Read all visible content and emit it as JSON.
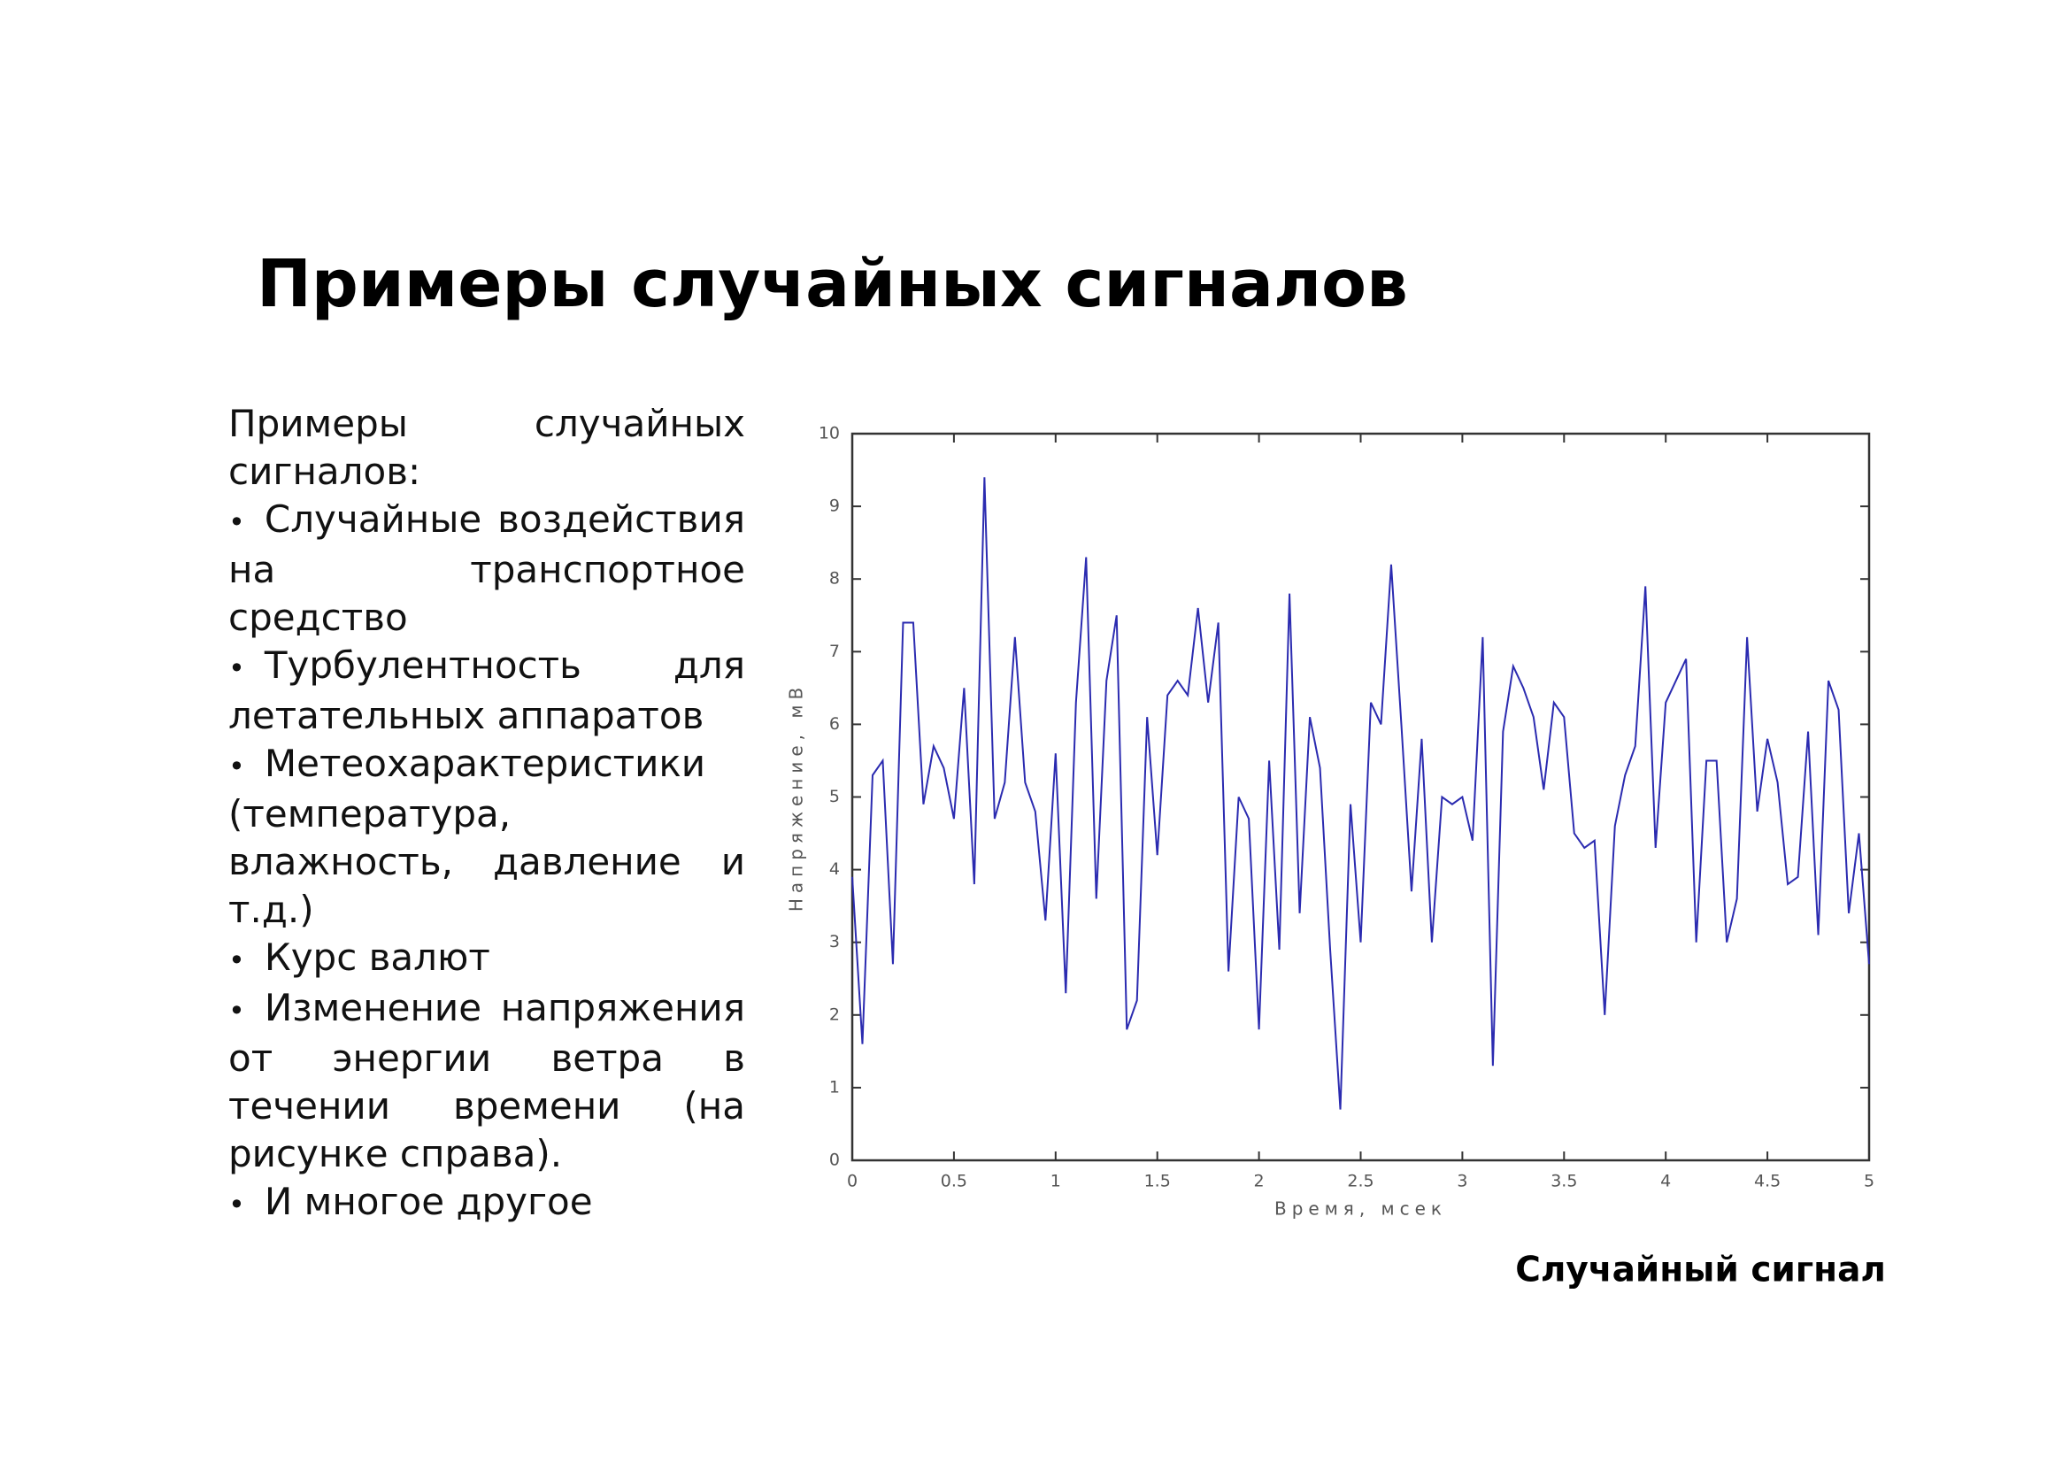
{
  "title": "Примеры случайных сигналов",
  "text": {
    "intro": "Примеры случайных сигналов:",
    "items": [
      "Случайные воздействия на транспортное средство",
      "Турбулентность для летательных аппаратов",
      "Метеохарактеристики (температура, влажность, давление и т.д.)",
      "Курс валют",
      "Изменение напряжения от энергии ветра в течении времени (на рисунке справа).",
      "И многое другое"
    ]
  },
  "caption": "Случайный сигнал",
  "chart_data": {
    "type": "line",
    "x_label": "Время, мсек",
    "y_label": "Напряжение, мВ",
    "x": [
      0,
      0.05,
      0.1,
      0.15,
      0.2,
      0.25,
      0.3,
      0.35,
      0.4,
      0.45,
      0.5,
      0.55,
      0.6,
      0.65,
      0.7,
      0.75,
      0.8,
      0.85,
      0.9,
      0.95,
      1,
      1.05,
      1.1,
      1.15,
      1.2,
      1.25,
      1.3,
      1.35,
      1.4,
      1.45,
      1.5,
      1.55,
      1.6,
      1.65,
      1.7,
      1.75,
      1.8,
      1.85,
      1.9,
      1.95,
      2,
      2.05,
      2.1,
      2.15,
      2.2,
      2.25,
      2.3,
      2.35,
      2.4,
      2.45,
      2.5,
      2.55,
      2.6,
      2.65,
      2.7,
      2.75,
      2.8,
      2.85,
      2.9,
      2.95,
      3,
      3.05,
      3.1,
      3.15,
      3.2,
      3.25,
      3.3,
      3.35,
      3.4,
      3.45,
      3.5,
      3.55,
      3.6,
      3.65,
      3.7,
      3.75,
      3.8,
      3.85,
      3.9,
      3.95,
      4,
      4.05,
      4.1,
      4.15,
      4.2,
      4.25,
      4.3,
      4.35,
      4.4,
      4.45,
      4.5,
      4.55,
      4.6,
      4.65,
      4.7,
      4.75,
      4.8,
      4.85,
      4.9,
      4.95,
      5
    ],
    "series": [
      {
        "color": "#2b2bb0",
        "values": [
          3.9,
          1.6,
          5.3,
          5.5,
          2.7,
          7.4,
          7.4,
          4.9,
          5.7,
          5.4,
          4.7,
          6.5,
          3.8,
          9.4,
          4.7,
          5.2,
          7.2,
          5.2,
          4.8,
          3.3,
          5.6,
          2.3,
          6.3,
          8.3,
          3.6,
          6.6,
          7.5,
          1.8,
          2.2,
          6.1,
          4.2,
          6.4,
          6.6,
          6.4,
          7.6,
          6.3,
          7.4,
          2.6,
          5.0,
          4.7,
          1.8,
          5.5,
          2.9,
          7.8,
          3.4,
          6.1,
          5.4,
          2.9,
          0.7,
          4.9,
          3.0,
          6.3,
          6.0,
          8.2,
          6.0,
          3.7,
          5.8,
          3.0,
          5.0,
          4.9,
          5.0,
          4.4,
          7.2,
          1.3,
          5.9,
          6.8,
          6.5,
          6.1,
          5.1,
          6.3,
          6.1,
          4.5,
          4.3,
          4.4,
          2.0,
          4.6,
          5.3,
          5.7,
          7.9,
          4.3,
          6.3,
          6.6,
          6.9,
          3.0,
          5.5,
          5.5,
          3.0,
          3.6,
          7.2,
          4.8,
          5.8,
          5.2,
          3.8,
          3.9,
          5.9,
          3.1,
          6.6,
          6.2,
          3.4,
          4.5,
          2.7
        ]
      }
    ],
    "xlim": [
      0,
      5
    ],
    "ylim": [
      0,
      10
    ],
    "xticks": [
      0,
      0.5,
      1,
      1.5,
      2,
      2.5,
      3,
      3.5,
      4,
      4.5,
      5
    ],
    "yticks": [
      0,
      1,
      2,
      3,
      4,
      5,
      6,
      7,
      8,
      9,
      10
    ]
  }
}
